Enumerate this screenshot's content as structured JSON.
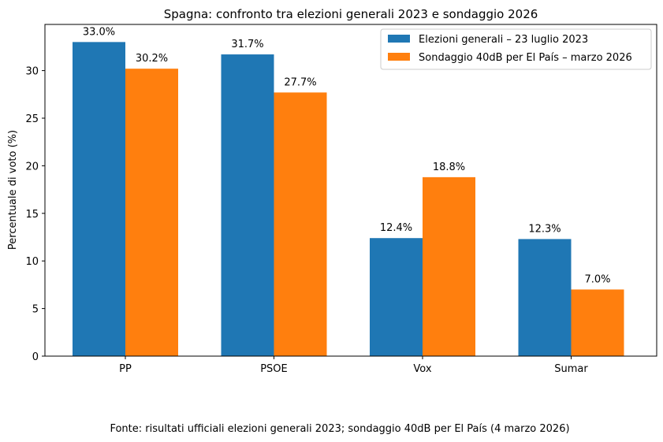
{
  "chart_data": {
    "type": "bar",
    "title": "Spagna: confronto tra elezioni generali 2023 e sondaggio 2026",
    "xlabel": "",
    "ylabel": "Percentuale di voto (%)",
    "categories": [
      "PP",
      "PSOE",
      "Vox",
      "Sumar"
    ],
    "series": [
      {
        "name": "Elezioni generali – 23 luglio 2023",
        "color": "#1f77b4",
        "values": [
          33.0,
          31.7,
          12.4,
          12.3
        ],
        "labels": [
          "33.0%",
          "31.7%",
          "12.4%",
          "12.3%"
        ]
      },
      {
        "name": "Sondaggio 40dB per El País – marzo 2026",
        "color": "#ff7f0e",
        "values": [
          30.2,
          27.7,
          18.8,
          7.0
        ],
        "labels": [
          "30.2%",
          "27.7%",
          "18.8%",
          "7.0%"
        ]
      }
    ],
    "ylim": [
      0,
      34.85
    ],
    "yticks": [
      0,
      5,
      10,
      15,
      20,
      25,
      30
    ],
    "ytick_labels": [
      "0",
      "5",
      "10",
      "15",
      "20",
      "25",
      "30"
    ],
    "grid": false,
    "legend_position": "top-right",
    "footnote": "Fonte: risultati ufficiali elezioni generali 2023; sondaggio 40dB per El País (4 marzo 2026)"
  }
}
